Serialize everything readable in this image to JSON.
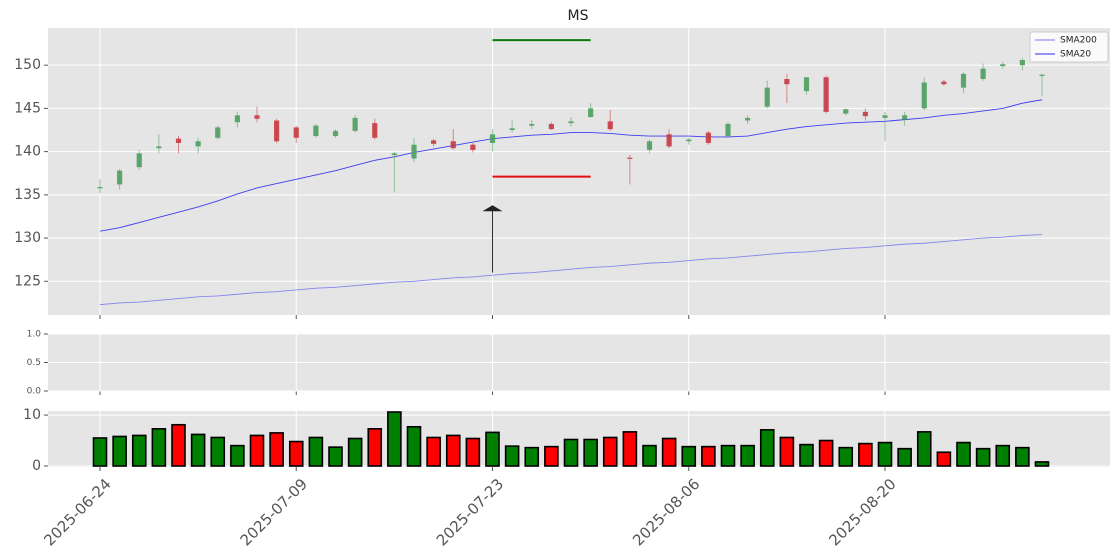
{
  "chart_data": [
    {
      "type": "candlestick",
      "title": "MS",
      "x": [
        "2025-06-24",
        "2025-06-25",
        "2025-06-26",
        "2025-06-27",
        "2025-06-30",
        "2025-07-01",
        "2025-07-02",
        "2025-07-03",
        "2025-07-07",
        "2025-07-08",
        "2025-07-09",
        "2025-07-10",
        "2025-07-11",
        "2025-07-14",
        "2025-07-15",
        "2025-07-16",
        "2025-07-17",
        "2025-07-18",
        "2025-07-21",
        "2025-07-22",
        "2025-07-23",
        "2025-07-24",
        "2025-07-25",
        "2025-07-28",
        "2025-07-29",
        "2025-07-30",
        "2025-07-31",
        "2025-08-01",
        "2025-08-04",
        "2025-08-05",
        "2025-08-06",
        "2025-08-07",
        "2025-08-08",
        "2025-08-11",
        "2025-08-12",
        "2025-08-13",
        "2025-08-14",
        "2025-08-15",
        "2025-08-18",
        "2025-08-19",
        "2025-08-20",
        "2025-08-21",
        "2025-08-22",
        "2025-08-25",
        "2025-08-26",
        "2025-08-27",
        "2025-08-28",
        "2025-08-29",
        "2025-09-02"
      ],
      "open": [
        135.8,
        136.2,
        138.2,
        140.4,
        141.5,
        140.6,
        141.6,
        143.4,
        144.2,
        143.6,
        142.8,
        141.8,
        141.8,
        142.4,
        143.3,
        139.6,
        139.2,
        141.3,
        141.2,
        140.8,
        141.0,
        142.5,
        143.0,
        143.2,
        143.3,
        144.0,
        143.5,
        139.3,
        140.2,
        142.0,
        141.2,
        142.2,
        141.8,
        143.6,
        145.2,
        148.4,
        147.0,
        148.6,
        144.4,
        144.6,
        143.9,
        143.7,
        145.0,
        148.1,
        147.4,
        148.4,
        149.9,
        150.0,
        148.8
      ],
      "high": [
        136.8,
        138.0,
        140.2,
        142.0,
        141.8,
        141.6,
        143.0,
        144.6,
        145.2,
        143.8,
        143.0,
        143.2,
        142.6,
        144.2,
        143.8,
        140.0,
        141.6,
        141.5,
        142.6,
        141.0,
        142.6,
        143.6,
        143.7,
        143.4,
        144.0,
        145.6,
        144.8,
        139.6,
        141.4,
        142.6,
        141.6,
        142.4,
        143.4,
        144.2,
        148.2,
        149.0,
        148.6,
        148.8,
        145.0,
        145.0,
        144.6,
        144.6,
        148.6,
        148.3,
        149.2,
        150.2,
        150.4,
        150.8,
        149.0
      ],
      "low": [
        135.2,
        135.6,
        137.9,
        139.8,
        139.8,
        139.8,
        141.4,
        142.8,
        143.4,
        141.0,
        141.0,
        141.6,
        141.6,
        142.2,
        141.4,
        135.3,
        138.8,
        140.6,
        140.2,
        139.9,
        140.0,
        142.2,
        142.6,
        142.5,
        142.9,
        143.9,
        142.4,
        136.2,
        139.8,
        140.4,
        140.8,
        140.8,
        141.6,
        143.2,
        145.0,
        145.6,
        146.6,
        144.4,
        144.2,
        143.6,
        141.2,
        143.0,
        144.8,
        147.6,
        146.8,
        148.2,
        149.6,
        149.4,
        146.4
      ],
      "close": [
        135.9,
        137.8,
        139.8,
        140.6,
        141.0,
        141.2,
        142.8,
        144.2,
        143.8,
        141.2,
        141.6,
        143.0,
        142.4,
        143.9,
        141.6,
        139.8,
        140.8,
        140.9,
        140.4,
        140.2,
        142.0,
        142.7,
        143.2,
        142.6,
        143.5,
        145.0,
        142.6,
        139.2,
        141.2,
        140.6,
        141.4,
        141.0,
        143.2,
        143.9,
        147.4,
        147.8,
        148.6,
        144.6,
        144.9,
        144.1,
        144.2,
        144.2,
        148.0,
        147.8,
        149.0,
        149.6,
        150.1,
        150.6,
        148.9
      ],
      "up_color": "#4e9e60",
      "down_color": "#c63a43",
      "series": [
        {
          "name": "SMA200",
          "color": "#7b7bef",
          "values": [
            122.3,
            122.5,
            122.6,
            122.8,
            123.0,
            123.2,
            123.3,
            123.5,
            123.7,
            123.8,
            124.0,
            124.2,
            124.3,
            124.5,
            124.7,
            124.9,
            125.0,
            125.2,
            125.4,
            125.5,
            125.7,
            125.9,
            126.0,
            126.2,
            126.4,
            126.6,
            126.7,
            126.9,
            127.1,
            127.2,
            127.4,
            127.6,
            127.7,
            127.9,
            128.1,
            128.3,
            128.4,
            128.6,
            128.8,
            128.9,
            129.1,
            129.3,
            129.4,
            129.6,
            129.8,
            130.0,
            130.1,
            130.3,
            130.4
          ]
        },
        {
          "name": "SMA20",
          "color": "#2b2bf0",
          "values": [
            130.8,
            131.2,
            131.8,
            132.4,
            133.0,
            133.6,
            134.3,
            135.1,
            135.8,
            136.3,
            136.8,
            137.3,
            137.8,
            138.4,
            139.0,
            139.4,
            139.9,
            140.3,
            140.7,
            141.1,
            141.5,
            141.7,
            141.9,
            142.0,
            142.2,
            142.2,
            142.1,
            141.9,
            141.8,
            141.8,
            141.8,
            141.7,
            141.7,
            141.8,
            142.2,
            142.6,
            142.9,
            143.1,
            143.3,
            143.4,
            143.5,
            143.7,
            143.9,
            144.2,
            144.4,
            144.7,
            145.0,
            145.6,
            146.0
          ]
        }
      ],
      "hlines": [
        {
          "y": 152.9,
          "from": "2025-07-23",
          "to": "2025-07-30",
          "color": "#0a7a0a"
        },
        {
          "y": 137.1,
          "from": "2025-07-23",
          "to": "2025-07-30",
          "color": "#e01010"
        }
      ],
      "arrow": {
        "x": "2025-07-23",
        "from": 126,
        "to": 133.8
      },
      "ylim": [
        121.1,
        154.3
      ],
      "yticks": [
        125,
        130,
        135,
        140,
        145,
        150
      ],
      "xticks": [
        "2025-06-24",
        "2025-07-09",
        "2025-07-23",
        "2025-08-06",
        "2025-08-20"
      ],
      "grid": true,
      "legend": "upper right"
    },
    {
      "type": "empty",
      "ylim": [
        0,
        1
      ],
      "yticks": [
        {
          "value": 0,
          "label": "0.0"
        },
        {
          "value": 0.5,
          "label": "0.5"
        },
        {
          "value": 1,
          "label": "1.0"
        }
      ],
      "grid": true
    },
    {
      "type": "bar",
      "values": [
        5.5,
        5.8,
        6.0,
        7.3,
        8.1,
        6.2,
        5.6,
        4.0,
        6.0,
        6.5,
        4.8,
        5.6,
        3.7,
        5.4,
        7.3,
        10.6,
        7.7,
        5.6,
        6.0,
        5.4,
        6.6,
        3.9,
        3.6,
        3.8,
        5.2,
        5.2,
        5.6,
        6.7,
        4.0,
        5.4,
        3.8,
        3.8,
        4.0,
        4.0,
        7.1,
        5.6,
        4.2,
        5.0,
        3.6,
        4.4,
        4.6,
        3.4,
        6.7,
        2.7,
        4.6,
        3.4,
        4.0,
        3.6,
        0.8
      ],
      "ylim": [
        -0.2,
        10.8
      ],
      "yticks": [
        0,
        10
      ],
      "grid": true
    }
  ]
}
